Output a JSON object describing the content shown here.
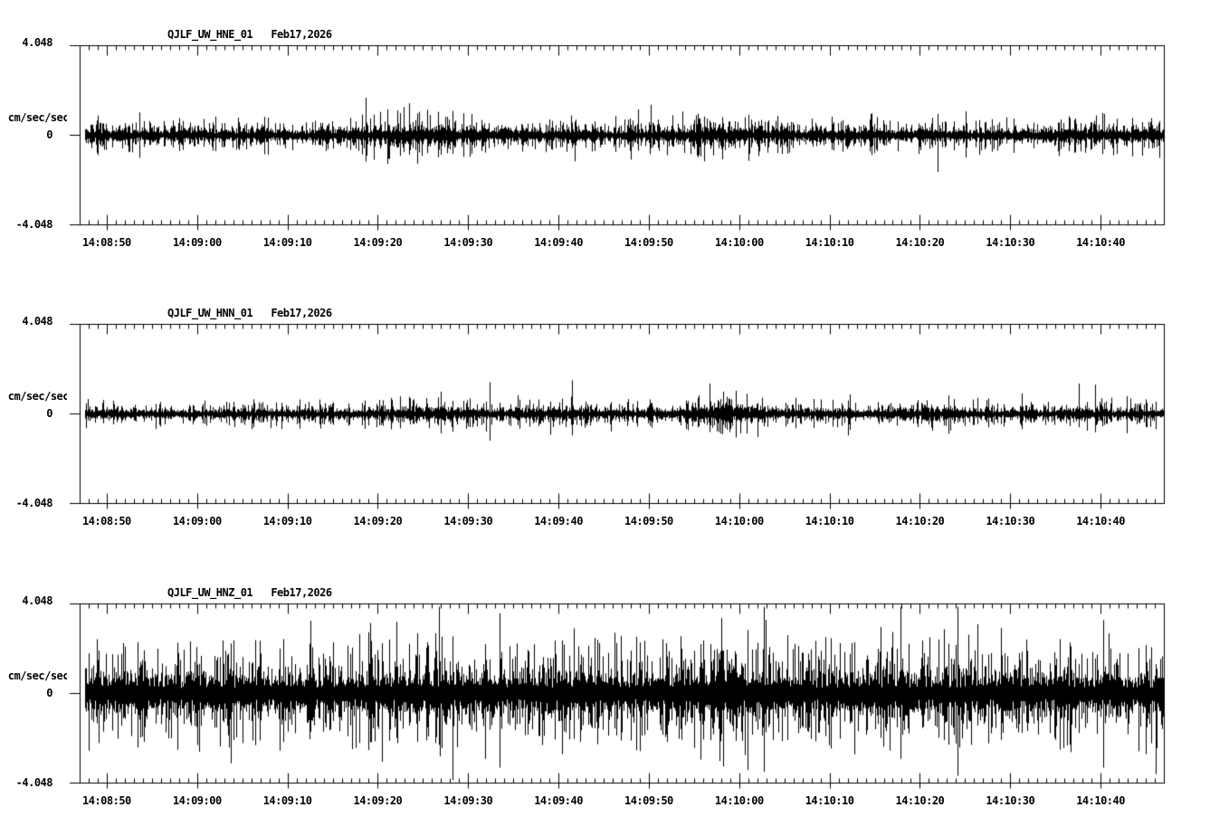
{
  "page": {
    "background_color": "#ffffff",
    "ink_color": "#000000",
    "description": "Three-channel seismogram strip chart, black traces on white"
  },
  "chart_data": {
    "type": "line",
    "subtype": "seismogram",
    "date_label": "Feb17,2026",
    "amplitude_units": "cm/sec/sec",
    "ylim": [
      -4.048,
      4.048
    ],
    "y_tick_labels": {
      "top": "4.048",
      "zero": "0",
      "bottom": "-4.048"
    },
    "time_window": {
      "start": "14:08:47",
      "end": "14:10:47",
      "duration_seconds": 120,
      "minor_tick_seconds": 1,
      "major_tick_seconds": 10,
      "first_major_tick_offset_seconds": 3
    },
    "time_labels": [
      "14:08:50",
      "14:09:00",
      "14:09:10",
      "14:09:20",
      "14:09:30",
      "14:09:40",
      "14:09:50",
      "14:10:00",
      "14:10:10",
      "14:10:20",
      "14:10:30",
      "14:10:40"
    ],
    "legend": "none",
    "grid": "off",
    "panels": [
      {
        "station": "QJLF_UW_HNE_01",
        "channel": "HNE",
        "title": "QJLF_UW_HNE_01   Feb17,2026",
        "noise": {
          "base_amplitude": 0.33,
          "spike_probability": 0.05,
          "seed": 7,
          "envelope": [
            [
              0,
              1.7
            ],
            [
              2,
              1.1
            ],
            [
              8,
              1.0
            ],
            [
              16,
              1.05
            ],
            [
              24,
              1.0
            ],
            [
              30,
              1.15
            ],
            [
              34,
              1.55
            ],
            [
              37,
              1.9
            ],
            [
              39,
              1.6
            ],
            [
              41,
              1.35
            ],
            [
              43,
              1.15
            ],
            [
              47,
              1.25
            ],
            [
              52,
              1.0
            ],
            [
              58,
              1.05
            ],
            [
              63,
              1.15
            ],
            [
              67,
              1.35
            ],
            [
              70,
              1.55
            ],
            [
              73,
              1.35
            ],
            [
              77,
              1.15
            ],
            [
              83,
              1.05
            ],
            [
              88,
              1.15
            ],
            [
              93,
              1.1
            ],
            [
              99,
              1.05
            ],
            [
              104,
              1.1
            ],
            [
              110,
              1.15
            ],
            [
              116,
              1.25
            ],
            [
              120,
              1.2
            ]
          ]
        }
      },
      {
        "station": "QJLF_UW_HNN_01",
        "channel": "HNN",
        "title": "QJLF_UW_HNN_01   Feb17,2026",
        "noise": {
          "base_amplitude": 0.26,
          "spike_probability": 0.05,
          "seed": 21,
          "envelope": [
            [
              0,
              1.5
            ],
            [
              2,
              1.0
            ],
            [
              10,
              0.95
            ],
            [
              20,
              1.0
            ],
            [
              30,
              1.05
            ],
            [
              36,
              1.2
            ],
            [
              40,
              1.45
            ],
            [
              42,
              1.15
            ],
            [
              48,
              1.1
            ],
            [
              54,
              1.25
            ],
            [
              57,
              1.1
            ],
            [
              62,
              1.05
            ],
            [
              66,
              1.2
            ],
            [
              69,
              1.9
            ],
            [
              71,
              2.05
            ],
            [
              74,
              1.55
            ],
            [
              77,
              1.35
            ],
            [
              81,
              1.15
            ],
            [
              86,
              1.05
            ],
            [
              91,
              1.1
            ],
            [
              94,
              1.4
            ],
            [
              97,
              1.15
            ],
            [
              102,
              1.05
            ],
            [
              107,
              1.0
            ],
            [
              112,
              1.15
            ],
            [
              117,
              1.1
            ],
            [
              120,
              1.05
            ]
          ]
        }
      },
      {
        "station": "QJLF_UW_HNZ_01",
        "channel": "HNZ",
        "title": "QJLF_UW_HNZ_01   Feb17,2026",
        "noise": {
          "base_amplitude": 0.85,
          "spike_probability": 0.07,
          "seed": 42,
          "envelope": [
            [
              0,
              1.45
            ],
            [
              4,
              1.25
            ],
            [
              10,
              1.15
            ],
            [
              16,
              1.25
            ],
            [
              22,
              1.2
            ],
            [
              28,
              1.3
            ],
            [
              34,
              1.45
            ],
            [
              38,
              1.55
            ],
            [
              41,
              1.35
            ],
            [
              46,
              1.3
            ],
            [
              52,
              1.4
            ],
            [
              58,
              1.3
            ],
            [
              63,
              1.35
            ],
            [
              68,
              1.45
            ],
            [
              71,
              1.85
            ],
            [
              72,
              2.0
            ],
            [
              74,
              1.5
            ],
            [
              79,
              1.35
            ],
            [
              84,
              1.25
            ],
            [
              90,
              1.45
            ],
            [
              95,
              1.35
            ],
            [
              100,
              1.3
            ],
            [
              105,
              1.25
            ],
            [
              110,
              1.3
            ],
            [
              115,
              1.35
            ],
            [
              120,
              1.45
            ]
          ]
        }
      }
    ]
  }
}
